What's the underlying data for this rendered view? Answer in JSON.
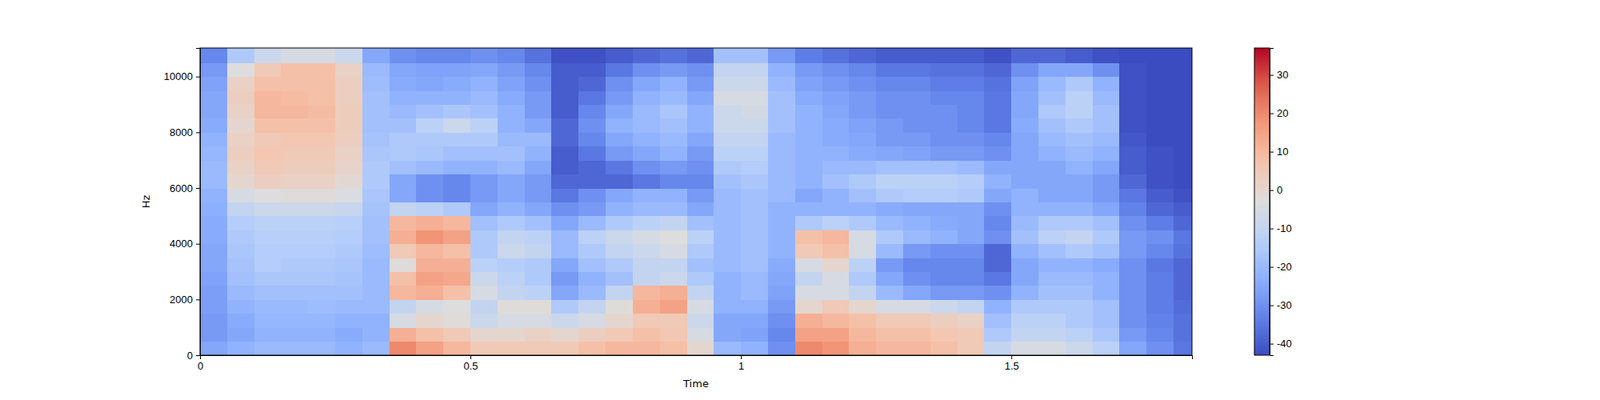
{
  "chart_data": {
    "type": "heatmap",
    "x_label": "Time",
    "y_label": "Hz",
    "xlim": [
      0,
      1.834
    ],
    "ylim": [
      0,
      11025
    ],
    "xticks": [
      0,
      0.5,
      1,
      1.5
    ],
    "yticks": [
      0,
      2000,
      4000,
      6000,
      8000,
      10000
    ],
    "x": [
      0,
      0.05,
      0.1,
      0.15,
      0.2,
      0.25,
      0.3,
      0.35,
      0.4,
      0.45,
      0.5,
      0.55,
      0.6,
      0.65,
      0.7,
      0.75,
      0.8,
      0.85,
      0.9,
      0.95,
      1.0,
      1.05,
      1.1,
      1.15,
      1.2,
      1.25,
      1.3,
      1.35,
      1.4,
      1.45,
      1.5,
      1.55,
      1.6,
      1.65,
      1.7,
      1.75,
      1.8
    ],
    "y": [
      0,
      500,
      1000,
      1500,
      2000,
      2500,
      3000,
      3500,
      4000,
      4500,
      5000,
      5500,
      6000,
      6500,
      7000,
      7500,
      8000,
      8500,
      9000,
      9500,
      10000,
      10500
    ],
    "values": [
      [
        -25,
        -28,
        -28,
        -27,
        -27,
        -26,
        -25,
        -25,
        -24,
        -24,
        -23,
        -22,
        -20,
        -20,
        -21,
        -22,
        -24,
        -25,
        -25,
        -26,
        -28,
        -32
      ],
      [
        -22,
        -25,
        -24,
        -22,
        -20,
        -18,
        -17,
        -16,
        -15,
        -14,
        -10,
        -5,
        0,
        2,
        3,
        2,
        0,
        2,
        3,
        2,
        -3,
        -15
      ],
      [
        -20,
        -22,
        -21,
        -20,
        -18,
        -16,
        -14,
        -14,
        -13,
        -12,
        -8,
        -3,
        3,
        5,
        6,
        5,
        8,
        10,
        10,
        8,
        5,
        -8
      ],
      [
        -20,
        -22,
        -21,
        -20,
        -18,
        -16,
        -15,
        -14,
        -13,
        -12,
        -8,
        -2,
        2,
        4,
        5,
        6,
        8,
        10,
        9,
        8,
        8,
        -5
      ],
      [
        -20,
        -22,
        -21,
        -19,
        -18,
        -16,
        -15,
        -14,
        -13,
        -12,
        -8,
        -2,
        2,
        4,
        5,
        6,
        8,
        9,
        8,
        8,
        8,
        -5
      ],
      [
        -22,
        -24,
        -22,
        -20,
        -18,
        -17,
        -16,
        -15,
        -14,
        -13,
        -9,
        -4,
        -1,
        1,
        2,
        3,
        4,
        4,
        3,
        3,
        2,
        -8
      ],
      [
        -20,
        -22,
        -22,
        -20,
        -20,
        -20,
        -20,
        -19,
        -18,
        -18,
        -17,
        -16,
        -15,
        -15,
        -16,
        -17,
        -18,
        -18,
        -18,
        -19,
        -20,
        -25
      ],
      [
        20,
        12,
        -5,
        -10,
        10,
        8,
        -2,
        5,
        12,
        10,
        -10,
        -25,
        -25,
        -18,
        -15,
        -15,
        -18,
        -20,
        -22,
        -24,
        -25,
        -30
      ],
      [
        15,
        8,
        0,
        -5,
        12,
        15,
        12,
        10,
        18,
        12,
        -12,
        -30,
        -30,
        -20,
        -16,
        -15,
        -12,
        -18,
        -22,
        -25,
        -26,
        -32
      ],
      [
        10,
        5,
        -2,
        -3,
        8,
        14,
        12,
        8,
        15,
        10,
        -15,
        -32,
        -32,
        -22,
        -18,
        -15,
        -8,
        -16,
        -22,
        -24,
        -26,
        -32
      ],
      [
        5,
        0,
        -8,
        -10,
        -5,
        -8,
        -12,
        -15,
        -15,
        -18,
        -25,
        -28,
        -28,
        -22,
        -18,
        -15,
        -12,
        -18,
        -20,
        -22,
        -25,
        -30
      ],
      [
        5,
        0,
        -5,
        -2,
        -10,
        -12,
        -14,
        -8,
        -10,
        -15,
        -22,
        -25,
        -25,
        -20,
        -18,
        -20,
        -22,
        -22,
        -24,
        -26,
        -28,
        -32
      ],
      [
        5,
        2,
        -5,
        -2,
        -12,
        -15,
        -15,
        -10,
        -12,
        -18,
        -25,
        -28,
        -28,
        -25,
        -22,
        -20,
        -25,
        -28,
        -28,
        -30,
        -32,
        -36
      ],
      [
        5,
        0,
        -8,
        -15,
        -25,
        -28,
        -25,
        -20,
        -20,
        -25,
        -30,
        -35,
        -38,
        -40,
        -40,
        -38,
        -38,
        -40,
        -40,
        -40,
        -40,
        -42
      ],
      [
        8,
        3,
        -5,
        -10,
        -20,
        -22,
        -18,
        -15,
        -12,
        -20,
        -28,
        -30,
        -38,
        -38,
        -35,
        -32,
        -30,
        -32,
        -35,
        -38,
        -40,
        -42
      ],
      [
        10,
        5,
        0,
        -2,
        -10,
        -18,
        -15,
        -10,
        -8,
        -15,
        -22,
        -25,
        -38,
        -35,
        -28,
        -25,
        -22,
        -25,
        -28,
        -30,
        -35,
        -40
      ],
      [
        10,
        8,
        5,
        12,
        10,
        -10,
        -10,
        -8,
        -5,
        -12,
        -20,
        -22,
        -35,
        -30,
        -25,
        -22,
        -20,
        -20,
        -22,
        -25,
        -30,
        -38
      ],
      [
        8,
        6,
        5,
        15,
        12,
        -8,
        -10,
        -5,
        -3,
        -10,
        -20,
        -22,
        -32,
        -28,
        -22,
        -20,
        -18,
        -16,
        -20,
        -22,
        -28,
        -36
      ],
      [
        0,
        -5,
        -8,
        -5,
        -10,
        -15,
        -18,
        -15,
        -12,
        -18,
        -25,
        -28,
        -32,
        -30,
        -28,
        -25,
        -22,
        -22,
        -25,
        -28,
        -30,
        -38
      ],
      [
        -20,
        -25,
        -25,
        -22,
        -22,
        -22,
        -20,
        -20,
        -20,
        -20,
        -20,
        -20,
        -18,
        -15,
        -12,
        -10,
        -8,
        -8,
        -5,
        -8,
        -10,
        -18
      ],
      [
        -22,
        -26,
        -25,
        -22,
        -20,
        -20,
        -18,
        -18,
        -18,
        -18,
        -18,
        -18,
        -16,
        -14,
        -12,
        -10,
        -8,
        -6,
        -5,
        -8,
        -10,
        -18
      ],
      [
        -30,
        -32,
        -30,
        -28,
        -26,
        -25,
        -24,
        -22,
        -22,
        -22,
        -22,
        -20,
        -20,
        -20,
        -20,
        -20,
        -18,
        -18,
        -18,
        -20,
        -22,
        -28
      ],
      [
        20,
        15,
        12,
        0,
        -5,
        -10,
        -5,
        5,
        8,
        -15,
        -22,
        -25,
        -22,
        -22,
        -22,
        -22,
        -22,
        -22,
        -24,
        -26,
        -28,
        -34
      ],
      [
        18,
        15,
        10,
        5,
        -5,
        -5,
        0,
        8,
        10,
        -12,
        -22,
        -22,
        -18,
        -20,
        -22,
        -24,
        -24,
        -25,
        -26,
        -28,
        -30,
        -36
      ],
      [
        12,
        10,
        8,
        0,
        -10,
        -15,
        -12,
        -5,
        -5,
        -15,
        -22,
        -18,
        -15,
        -20,
        -24,
        -25,
        -26,
        -28,
        -28,
        -30,
        -32,
        -38
      ],
      [
        10,
        8,
        5,
        -5,
        -20,
        -25,
        -28,
        -20,
        -15,
        -20,
        -24,
        -15,
        -12,
        -18,
        -25,
        -28,
        -28,
        -30,
        -30,
        -32,
        -35,
        -40
      ],
      [
        10,
        8,
        5,
        -5,
        -25,
        -30,
        -32,
        -28,
        -20,
        -22,
        -25,
        -14,
        -12,
        -18,
        -26,
        -28,
        -30,
        -30,
        -30,
        -32,
        -35,
        -40
      ],
      [
        8,
        6,
        3,
        -8,
        -28,
        -32,
        -32,
        -30,
        -22,
        -24,
        -25,
        -14,
        -12,
        -18,
        -28,
        -30,
        -30,
        -30,
        -32,
        -34,
        -36,
        -40
      ],
      [
        5,
        5,
        2,
        -10,
        -28,
        -32,
        -32,
        -30,
        -25,
        -25,
        -25,
        -15,
        -14,
        -20,
        -28,
        -30,
        -32,
        -32,
        -32,
        -34,
        -36,
        -40
      ],
      [
        -10,
        -15,
        -18,
        -22,
        -30,
        -35,
        -38,
        -38,
        -30,
        -32,
        -30,
        -25,
        -22,
        -25,
        -30,
        -32,
        -35,
        -35,
        -35,
        -36,
        -38,
        -42
      ],
      [
        -5,
        -10,
        -12,
        -15,
        -22,
        -25,
        -25,
        -22,
        -18,
        -20,
        -22,
        -22,
        -25,
        -25,
        -25,
        -25,
        -24,
        -25,
        -25,
        -26,
        -30,
        -38
      ],
      [
        -5,
        -10,
        -12,
        -15,
        -18,
        -20,
        -22,
        -18,
        -12,
        -15,
        -22,
        -25,
        -25,
        -25,
        -22,
        -20,
        -18,
        -15,
        -18,
        -20,
        -25,
        -38
      ],
      [
        -8,
        -12,
        -15,
        -15,
        -18,
        -20,
        -22,
        -15,
        -10,
        -15,
        -22,
        -25,
        -25,
        -22,
        -20,
        -18,
        -15,
        -12,
        -12,
        -15,
        -25,
        -40
      ],
      [
        -12,
        -16,
        -18,
        -18,
        -22,
        -22,
        -24,
        -18,
        -15,
        -18,
        -25,
        -28,
        -28,
        -25,
        -22,
        -20,
        -18,
        -18,
        -20,
        -22,
        -30,
        -42
      ],
      [
        -25,
        -28,
        -30,
        -30,
        -30,
        -30,
        -30,
        -28,
        -28,
        -30,
        -33,
        -35,
        -38,
        -40,
        -40,
        -41,
        -42,
        -42,
        -42,
        -42,
        -42,
        -43
      ],
      [
        -30,
        -32,
        -33,
        -34,
        -34,
        -34,
        -35,
        -32,
        -30,
        -34,
        -38,
        -40,
        -42,
        -42,
        -42,
        -43,
        -43,
        -43,
        -43,
        -43,
        -43,
        -43
      ],
      [
        -35,
        -36,
        -36,
        -37,
        -38,
        -38,
        -38,
        -36,
        -35,
        -38,
        -40,
        -42,
        -43,
        -43,
        -43,
        -43,
        -43,
        -43,
        -43,
        -43,
        -43,
        -43
      ]
    ],
    "colorbar": {
      "range": [
        -43,
        37
      ],
      "ticks": [
        -40,
        -30,
        -20,
        -10,
        0,
        10,
        20,
        30
      ]
    }
  }
}
